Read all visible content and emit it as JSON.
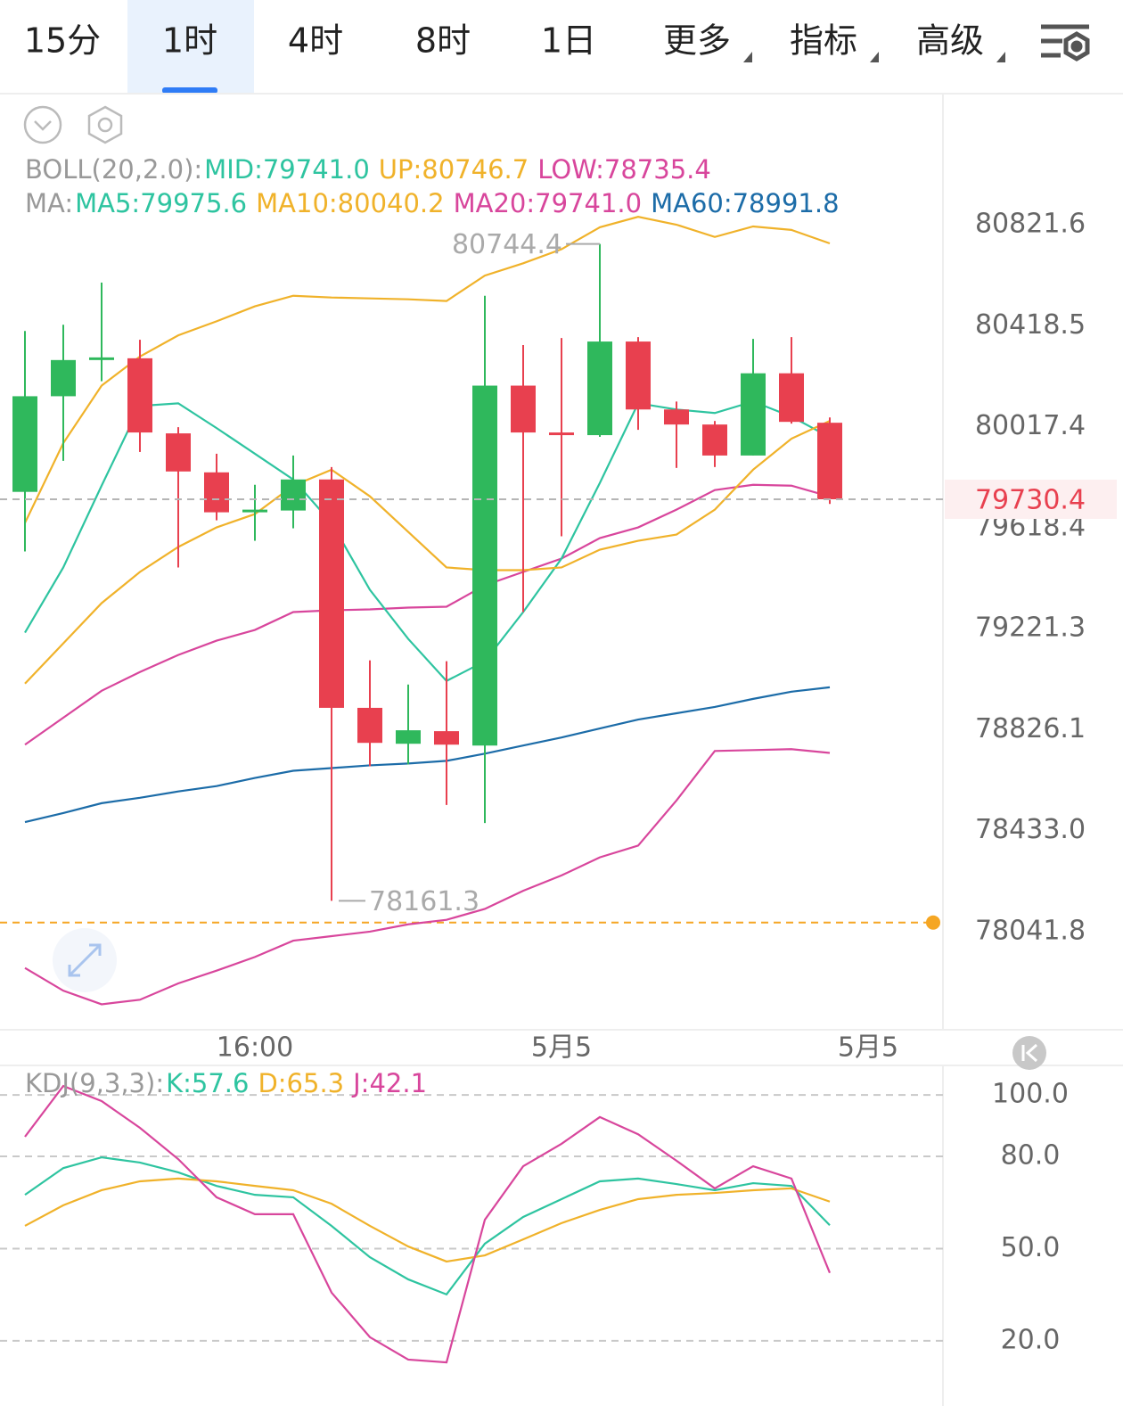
{
  "tabs": [
    "15分",
    "1时",
    "4时",
    "8时",
    "1日"
  ],
  "active_tab": 1,
  "dropdowns": [
    "更多",
    "指标",
    "高级"
  ],
  "chart_data": [
    {
      "type": "candlestick",
      "log_scale": true,
      "grid": false,
      "ylim": [
        77663.8,
        81347.7
      ],
      "yticks": [
        80821.6,
        80418.5,
        80017.4,
        79618.4,
        79221.3,
        78826.1,
        {
          "value": 78433,
          "label": "78433.0"
        },
        78041.8
      ],
      "categories": [
        null,
        null,
        null,
        null,
        null,
        null,
        "16:00",
        null,
        null,
        null,
        null,
        null,
        null,
        null,
        "5月5",
        null,
        null,
        null,
        null,
        null,
        null,
        null,
        "5月5"
      ],
      "open": [
        79759.6,
        80138.1,
        80281.8,
        80288.8,
        79990.9,
        79836.7,
        79679,
        79686,
        79808.6,
        78911.4,
        78771.2,
        78820.3,
        78764.2,
        80180.2,
        79994.4,
        79983.9,
        80355.4,
        80085.6,
        80026,
        79903.3,
        80229.2,
        80033,
        null
      ],
      "high": [
        80397.5,
        80422,
        80590.3,
        80362.5,
        80015.4,
        79910.3,
        79787.6,
        79903.3,
        79857.7,
        79097.1,
        79002.5,
        79093.6,
        80537.7,
        80341.4,
        80369.5,
        80744.4,
        80373,
        80117.1,
        80040,
        80366,
        80373,
        80054,
        null
      ],
      "low": [
        79524.8,
        79882.3,
        80197.7,
        79917.3,
        79461.7,
        79647.4,
        79566.8,
        79615.9,
        78161.3,
        78683.6,
        78690.6,
        78532.9,
        78462.7,
        79286.4,
        79584.4,
        79976.9,
        80005,
        79854.2,
        79857.7,
        79903.3,
        80029.5,
        79712,
        null
      ],
      "close": [
        80138.1,
        80281.8,
        80292.3,
        79994.4,
        79840.2,
        79679,
        79689.5,
        79808.6,
        78911.4,
        78774.7,
        78823.8,
        78767.7,
        80180.2,
        79994.4,
        79983.9,
        80355.4,
        80085.6,
        80026,
        79903.3,
        80229.2,
        80036.5,
        79730.4,
        null
      ],
      "up_color": "#2fb85c",
      "down_color": "#e8404f",
      "series": [
        {
          "name": "UP",
          "color": "#f0b22a",
          "values": [
            79636.9,
            79952.4,
            80180.2,
            80295.8,
            80380.0,
            80436.0,
            80495.6,
            80537.7,
            80530.7,
            80527.2,
            80523.7,
            80516.7,
            80618.3,
            80667.4,
            80723.5,
            80811.1,
            80853.1,
            80821.6,
            80772.5,
            80814.6,
            80800.6,
            80746.7,
            null
          ]
        },
        {
          "name": "MID",
          "color": "#d8469c",
          "values": [
            78767.7,
            78872.8,
            78978.0,
            79051.6,
            79118.2,
            79174.2,
            79216.3,
            79286.4,
            79293.4,
            79296.9,
            79303.9,
            79307.4,
            79391.6,
            79444.1,
            79496.7,
            79577.3,
            79619.4,
            79689.5,
            79766.6,
            79787.6,
            79784.1,
            79741.0,
            null
          ]
        },
        {
          "name": "LOW",
          "color": "#d8469c",
          "values": [
            77901.9,
            77814.3,
            77761.7,
            77779.3,
            77842.3,
            77891.4,
            77944.0,
            78007.1,
            78024.6,
            78042.1,
            78070.2,
            78087.7,
            78129.8,
            78199.9,
            78259.4,
            78329.5,
            78375.1,
            78550.4,
            78743.1,
            78746.6,
            78750.1,
            78735.4,
            null
          ]
        },
        {
          "name": "MA5",
          "color": "#2ec4a0",
          "values": [
            79205.8,
            79461.7,
            79784.1,
            80099.6,
            80110.1,
            80011.9,
            79910.3,
            79808.6,
            79636.9,
            79374.0,
            79181.3,
            79016.5,
            79093.6,
            79286.4,
            79496.7,
            79794.6,
            80110.1,
            80085.5,
            80071.5,
            80117.1,
            80057.5,
            79975.6,
            null
          ]
        },
        {
          "name": "MA10",
          "color": "#f0b22a",
          "values": [
            79006.0,
            79163.7,
            79321.5,
            79444.1,
            79542.3,
            79619.4,
            79672.0,
            79784.1,
            79847.2,
            79742.1,
            79601.9,
            79461.7,
            79451.1,
            79451.1,
            79461.7,
            79531.8,
            79566.8,
            79591.3,
            79689.5,
            79847.2,
            79969.9,
            80040.2,
            null
          ]
        },
        {
          "name": "MA60",
          "color": "#1c6ca8",
          "values": [
            78466.2,
            78501.3,
            78539.8,
            78560.9,
            78585.4,
            78606.4,
            78638.0,
            78666.0,
            78676.5,
            78687.0,
            78694.1,
            78704.6,
            78732.6,
            78764.2,
            78795.7,
            78830.8,
            78865.8,
            78890.3,
            78914.9,
            78946.4,
            78974.5,
            78991.8,
            null
          ]
        }
      ],
      "legend": [
        {
          "label": "BOLL(20,2.0):",
          "items": [
            {
              "text": "MID:79741.0",
              "color": "#2ec4a0"
            },
            {
              "text": "UP:80746.7",
              "color": "#f0b22a"
            },
            {
              "text": "LOW:78735.4",
              "color": "#d8469c"
            }
          ]
        },
        {
          "label": "MA:",
          "items": [
            {
              "text": "MA5:79975.6",
              "color": "#2ec4a0"
            },
            {
              "text": "MA10:80040.2",
              "color": "#f0b22a"
            },
            {
              "text": "MA20:79741.0",
              "color": "#d8469c"
            },
            {
              "text": "MA60:78991.8",
              "color": "#1c6ca8"
            }
          ]
        }
      ],
      "last_price": 79730.4,
      "last_price_color": "#e8404f",
      "high_label": 80744.4,
      "low_label": 78161.3,
      "alert_price": 78077.2,
      "alert_color": "#f5a623"
    },
    {
      "type": "line",
      "grid": true,
      "ylim": [
        -1.2,
        109.6
      ],
      "yticks": [
        {
          "value": 100,
          "label": "100.0"
        },
        {
          "value": 80,
          "label": "80.0"
        },
        {
          "value": 50,
          "label": "50.0"
        },
        {
          "value": 20,
          "label": "20.0"
        }
      ],
      "series": [
        {
          "name": "K",
          "color": "#2ec4a0",
          "values": [
            67.5,
            76.2,
            79.7,
            78.0,
            74.8,
            70.4,
            67.5,
            66.7,
            57.4,
            47.2,
            40.0,
            35.1,
            51.6,
            60.3,
            66.1,
            71.9,
            72.8,
            71.0,
            69.0,
            71.3,
            70.4,
            57.6
          ]
        },
        {
          "name": "D",
          "color": "#f0b22a",
          "values": [
            57.4,
            64.1,
            69.0,
            71.9,
            72.8,
            71.9,
            70.4,
            69.0,
            64.6,
            57.4,
            50.7,
            45.8,
            47.8,
            53.0,
            58.3,
            62.6,
            66.1,
            67.5,
            68.1,
            69.0,
            69.6,
            65.3
          ]
        },
        {
          "name": "J",
          "color": "#d8469c",
          "values": [
            86.4,
            102.9,
            98.0,
            89.3,
            79.1,
            66.7,
            61.2,
            61.2,
            35.7,
            21.2,
            13.9,
            13.0,
            59.4,
            76.8,
            84.1,
            92.8,
            87.2,
            78.6,
            69.6,
            76.8,
            72.8,
            42.1
          ]
        }
      ],
      "legend": [
        {
          "label": "KDJ(9,3,3):",
          "items": [
            {
              "text": "K:57.6",
              "color": "#2ec4a0"
            },
            {
              "text": "D:65.3",
              "color": "#f0b22a"
            },
            {
              "text": "J:42.1",
              "color": "#d8469c"
            }
          ]
        }
      ]
    }
  ]
}
